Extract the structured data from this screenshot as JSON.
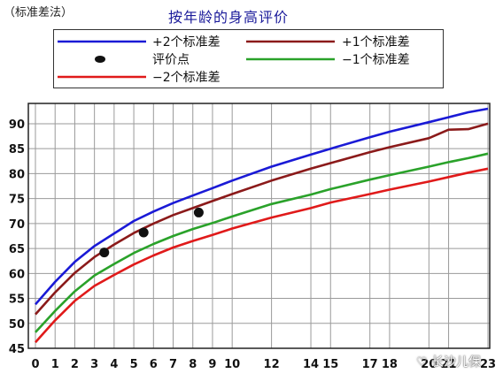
{
  "corner_label": "（标准差法）",
  "watermark": "♡ 长沙儿保",
  "chart_data": {
    "type": "line",
    "title": "按年龄的身高评价",
    "xlabel": "",
    "ylabel": "",
    "xlim": [
      0,
      23
    ],
    "ylim": [
      45,
      93
    ],
    "grid": true,
    "legend_position": "top",
    "x_ticks": [
      0,
      1,
      2,
      3,
      4,
      5,
      6,
      7,
      8,
      9,
      10,
      12,
      14,
      15,
      17,
      18,
      20,
      21,
      23
    ],
    "x_tick_labels": [
      "0",
      "1",
      "2",
      "3",
      "4",
      "5",
      "6",
      "7",
      "8",
      "9",
      "10",
      "12",
      "14",
      "15",
      "17",
      "18",
      "20",
      "21",
      "23"
    ],
    "y_ticks": [
      45,
      50,
      55,
      60,
      65,
      70,
      75,
      80,
      85,
      90
    ],
    "x": [
      0,
      1,
      2,
      3,
      4,
      5,
      6,
      7,
      8,
      9,
      10,
      12,
      14,
      15,
      17,
      18,
      20,
      21,
      22,
      23
    ],
    "series": [
      {
        "name": "+2个标准差",
        "color": "#1a1ad6",
        "values": [
          53.8,
          58.3,
          62.3,
          65.5,
          68.0,
          70.5,
          72.4,
          74.1,
          75.6,
          77.1,
          78.6,
          81.4,
          83.8,
          85.0,
          87.3,
          88.4,
          90.3,
          91.3,
          92.3,
          93.0
        ]
      },
      {
        "name": "+1个标准差",
        "color": "#8b1a1a",
        "values": [
          51.8,
          56.2,
          60.1,
          63.3,
          65.8,
          68.1,
          70.0,
          71.7,
          73.1,
          74.5,
          75.9,
          78.6,
          81.0,
          82.1,
          84.3,
          85.3,
          87.1,
          88.8,
          88.9,
          90.0
        ]
      },
      {
        "name": "−1个标准差",
        "color": "#2aa22a",
        "values": [
          48.2,
          52.5,
          56.4,
          59.6,
          61.9,
          64.1,
          65.9,
          67.5,
          68.9,
          70.1,
          71.4,
          73.9,
          75.8,
          76.9,
          78.8,
          79.7,
          81.4,
          82.3,
          83.1,
          84.0
        ]
      },
      {
        "name": "−2个标准差",
        "color": "#e01a1a",
        "values": [
          46.2,
          50.6,
          54.5,
          57.5,
          59.7,
          61.8,
          63.6,
          65.2,
          66.5,
          67.7,
          69.0,
          71.2,
          73.1,
          74.2,
          75.9,
          76.8,
          78.4,
          79.3,
          80.2,
          81.0
        ]
      }
    ],
    "points": {
      "name": "评价点",
      "x": [
        3.5,
        5.5,
        8.3
      ],
      "y": [
        64.2,
        68.2,
        72.2
      ]
    }
  }
}
